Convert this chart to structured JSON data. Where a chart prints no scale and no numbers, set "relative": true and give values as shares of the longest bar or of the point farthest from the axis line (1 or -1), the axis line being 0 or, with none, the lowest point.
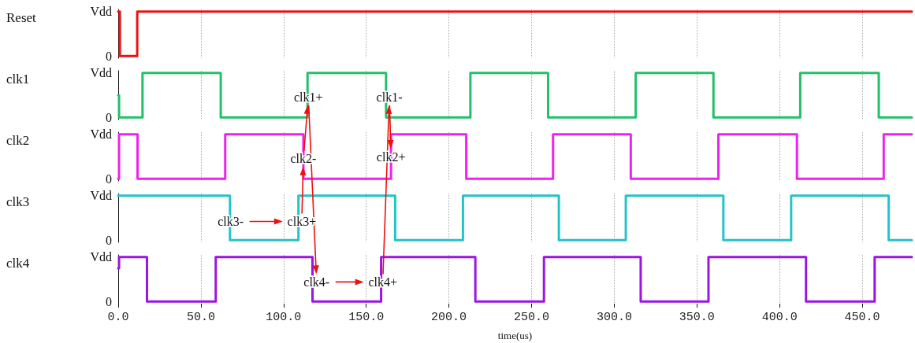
{
  "chart_data": [
    {
      "type": "step",
      "ylabel": "Reset",
      "relative": true,
      "xlim": [
        0,
        480
      ],
      "xticks": [
        0,
        50,
        100,
        150,
        200,
        250,
        300,
        350,
        400,
        450
      ],
      "tick_labels": false,
      "grid": true,
      "x": [
        0,
        1,
        11.5,
        480
      ],
      "series": [
        {
          "color": "#ee1111",
          "values": [
            1,
            0,
            1,
            1
          ]
        }
      ],
      "annotations": [
        "Vdd",
        "0"
      ]
    },
    {
      "type": "step",
      "ylabel": "clk1",
      "relative": true,
      "xlim": [
        0,
        480
      ],
      "xticks": [
        0,
        50,
        100,
        150,
        200,
        250,
        300,
        350,
        400,
        450
      ],
      "tick_labels": false,
      "grid": true,
      "x": [
        0,
        0.5,
        14.7,
        62,
        114.5,
        162,
        213,
        260,
        313,
        360,
        412.5,
        460,
        480
      ],
      "series": [
        {
          "color": "#22c06a",
          "values": [
            0.5,
            0,
            1,
            0,
            1,
            0,
            1,
            0,
            1,
            0,
            1,
            0,
            0
          ]
        }
      ],
      "annotations": [
        "Vdd",
        "0",
        {
          "text": "clk1+",
          "x": 115,
          "y": 0.45
        },
        {
          "text": "clk1-",
          "x": 164,
          "y": 0.45
        }
      ]
    },
    {
      "type": "step",
      "ylabel": "clk2",
      "relative": true,
      "xlim": [
        0,
        480
      ],
      "xticks": [
        0,
        50,
        100,
        150,
        200,
        250,
        300,
        350,
        400,
        450
      ],
      "tick_labels": false,
      "grid": true,
      "x": [
        0,
        0.5,
        11.7,
        64.7,
        112,
        165,
        210.5,
        263,
        310,
        363,
        410.5,
        463,
        480
      ],
      "series": [
        {
          "color": "#ee22ee",
          "values": [
            0,
            1,
            0,
            1,
            0,
            1,
            0,
            1,
            0,
            1,
            0,
            1,
            1
          ]
        }
      ],
      "annotations": [
        "Vdd",
        "0",
        {
          "text": "clk2-",
          "x": 112,
          "y": 0.45
        },
        {
          "text": "clk2+",
          "x": 165,
          "y": 0.5
        }
      ]
    },
    {
      "type": "step",
      "ylabel": "clk3",
      "relative": true,
      "xlim": [
        0,
        480
      ],
      "xticks": [
        0,
        50,
        100,
        150,
        200,
        250,
        300,
        350,
        400,
        450
      ],
      "tick_labels": false,
      "grid": true,
      "x": [
        0,
        67.6,
        109,
        167.5,
        208.5,
        266.5,
        307,
        366,
        407,
        466,
        480
      ],
      "series": [
        {
          "color": "#22c4c8",
          "values": [
            1,
            0,
            1,
            0,
            1,
            0,
            1,
            0,
            1,
            0,
            0
          ]
        }
      ],
      "annotations": [
        "Vdd",
        "0",
        {
          "text": "clk3-",
          "x": 68,
          "y": 0.42
        },
        {
          "text": "clk3+",
          "x": 111,
          "y": 0.42
        }
      ]
    },
    {
      "type": "step",
      "ylabel": "clk4",
      "relative": true,
      "xlabel": "time(us)",
      "xlim": [
        0,
        480
      ],
      "xticks": [
        {
          "value": 0,
          "label": "0.0"
        },
        {
          "value": 50,
          "label": "50.0"
        },
        {
          "value": 100,
          "label": "100.0"
        },
        {
          "value": 150,
          "label": "150.0"
        },
        {
          "value": 200,
          "label": "200.0"
        },
        {
          "value": 250,
          "label": "250.0"
        },
        {
          "value": 300,
          "label": "300.0"
        },
        {
          "value": 350,
          "label": "350.0"
        },
        {
          "value": 400,
          "label": "400.0"
        },
        {
          "value": 450,
          "label": "450.0"
        }
      ],
      "grid": true,
      "x": [
        0,
        0.5,
        17.4,
        59,
        117.5,
        159,
        216,
        257.5,
        316,
        357,
        416,
        457.5,
        480
      ],
      "series": [
        {
          "color": "#9a14e6",
          "values": [
            0.75,
            1,
            0,
            1,
            0,
            1,
            0,
            1,
            0,
            1,
            0,
            1,
            1
          ]
        }
      ],
      "annotations": [
        "Vdd",
        "0",
        {
          "text": "clk4-",
          "x": 120,
          "y": 0.44
        },
        {
          "text": "clk4+",
          "x": 160,
          "y": 0.44
        }
      ]
    }
  ]
}
